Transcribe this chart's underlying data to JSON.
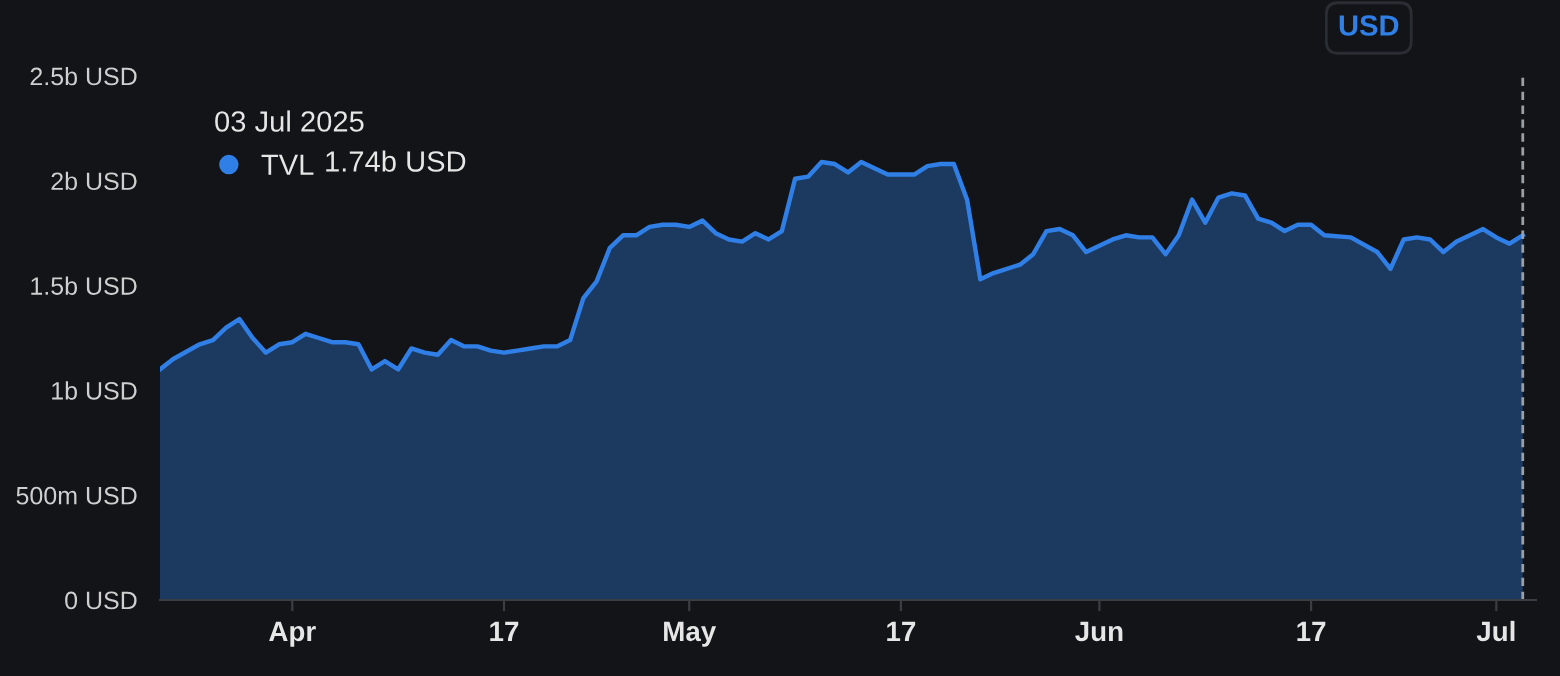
{
  "chart_data": {
    "type": "area",
    "x": [
      "2025-03-22",
      "2025-03-23",
      "2025-03-25",
      "2025-03-26",
      "2025-03-27",
      "2025-03-28",
      "2025-03-29",
      "2025-03-30",
      "2025-03-31",
      "2025-04-01",
      "2025-04-02",
      "2025-04-03",
      "2025-04-04",
      "2025-04-05",
      "2025-04-06",
      "2025-04-07",
      "2025-04-08",
      "2025-04-09",
      "2025-04-10",
      "2025-04-11",
      "2025-04-12",
      "2025-04-13",
      "2025-04-14",
      "2025-04-15",
      "2025-04-16",
      "2025-04-17",
      "2025-04-18",
      "2025-04-19",
      "2025-04-20",
      "2025-04-21",
      "2025-04-22",
      "2025-04-23",
      "2025-04-24",
      "2025-04-25",
      "2025-04-26",
      "2025-04-27",
      "2025-04-28",
      "2025-04-29",
      "2025-04-30",
      "2025-05-01",
      "2025-05-02",
      "2025-05-03",
      "2025-05-04",
      "2025-05-05",
      "2025-05-06",
      "2025-05-07",
      "2025-05-08",
      "2025-05-09",
      "2025-05-10",
      "2025-05-11",
      "2025-05-12",
      "2025-05-13",
      "2025-05-14",
      "2025-05-15",
      "2025-05-16",
      "2025-05-18",
      "2025-05-19",
      "2025-05-20",
      "2025-05-21",
      "2025-05-22",
      "2025-05-23",
      "2025-05-24",
      "2025-05-26",
      "2025-05-27",
      "2025-05-28",
      "2025-05-29",
      "2025-05-30",
      "2025-05-31",
      "2025-06-01",
      "2025-06-02",
      "2025-06-03",
      "2025-06-04",
      "2025-06-05",
      "2025-06-06",
      "2025-06-07",
      "2025-06-08",
      "2025-06-09",
      "2025-06-10",
      "2025-06-11",
      "2025-06-12",
      "2025-06-13",
      "2025-06-14",
      "2025-06-15",
      "2025-06-16",
      "2025-06-17",
      "2025-06-18",
      "2025-06-20",
      "2025-06-22",
      "2025-06-23",
      "2025-06-24",
      "2025-06-25",
      "2025-06-26",
      "2025-06-27",
      "2025-06-28",
      "2025-06-30",
      "2025-07-01",
      "2025-07-02",
      "2025-07-03"
    ],
    "series": [
      {
        "name": "TVL",
        "color": "#2f7fe6",
        "values": [
          1100000000,
          1150000000,
          1220000000,
          1240000000,
          1300000000,
          1340000000,
          1250000000,
          1180000000,
          1220000000,
          1230000000,
          1270000000,
          1250000000,
          1230000000,
          1230000000,
          1220000000,
          1100000000,
          1140000000,
          1100000000,
          1200000000,
          1180000000,
          1170000000,
          1240000000,
          1210000000,
          1210000000,
          1190000000,
          1180000000,
          1190000000,
          1200000000,
          1210000000,
          1210000000,
          1240000000,
          1440000000,
          1520000000,
          1680000000,
          1740000000,
          1740000000,
          1780000000,
          1790000000,
          1790000000,
          1780000000,
          1810000000,
          1750000000,
          1720000000,
          1710000000,
          1750000000,
          1720000000,
          1760000000,
          2010000000,
          2020000000,
          2090000000,
          2080000000,
          2040000000,
          2090000000,
          2060000000,
          2030000000,
          2030000000,
          2070000000,
          2080000000,
          2080000000,
          1910000000,
          1530000000,
          1560000000,
          1600000000,
          1650000000,
          1760000000,
          1770000000,
          1740000000,
          1660000000,
          1690000000,
          1720000000,
          1740000000,
          1730000000,
          1730000000,
          1650000000,
          1740000000,
          1910000000,
          1800000000,
          1920000000,
          1940000000,
          1930000000,
          1820000000,
          1800000000,
          1760000000,
          1790000000,
          1790000000,
          1740000000,
          1730000000,
          1660000000,
          1580000000,
          1720000000,
          1730000000,
          1720000000,
          1660000000,
          1710000000,
          1770000000,
          1730000000,
          1700000000,
          1740000000
        ]
      }
    ],
    "xlim": [
      "2025-03-22",
      "2025-07-04"
    ],
    "xticks": [
      {
        "value": "2025-04-01",
        "label": "Apr"
      },
      {
        "value": "2025-04-17",
        "label": "17"
      },
      {
        "value": "2025-05-01",
        "label": "May"
      },
      {
        "value": "2025-05-17",
        "label": "17"
      },
      {
        "value": "2025-06-01",
        "label": "Jun"
      },
      {
        "value": "2025-06-17",
        "label": "17"
      },
      {
        "value": "2025-07-01",
        "label": "Jul"
      }
    ],
    "ylim": [
      0,
      2500000000
    ],
    "yticks": [
      {
        "value": 0,
        "label": "0 USD"
      },
      {
        "value": 500000000,
        "label": "500m USD"
      },
      {
        "value": 1000000000,
        "label": "1b USD"
      },
      {
        "value": 1500000000,
        "label": "1.5b USD"
      },
      {
        "value": 2000000000,
        "label": "2b USD"
      },
      {
        "value": 2500000000,
        "label": "2.5b USD"
      }
    ],
    "ref_lines": [
      {
        "axis": "x",
        "value": "2025-07-03",
        "label": null,
        "color": "#9aa0a6",
        "line_style": "dashed"
      }
    ],
    "legend": "top left",
    "annotations": [
      "03 Jul 2025",
      "1.74b USD",
      "USD"
    ]
  }
}
